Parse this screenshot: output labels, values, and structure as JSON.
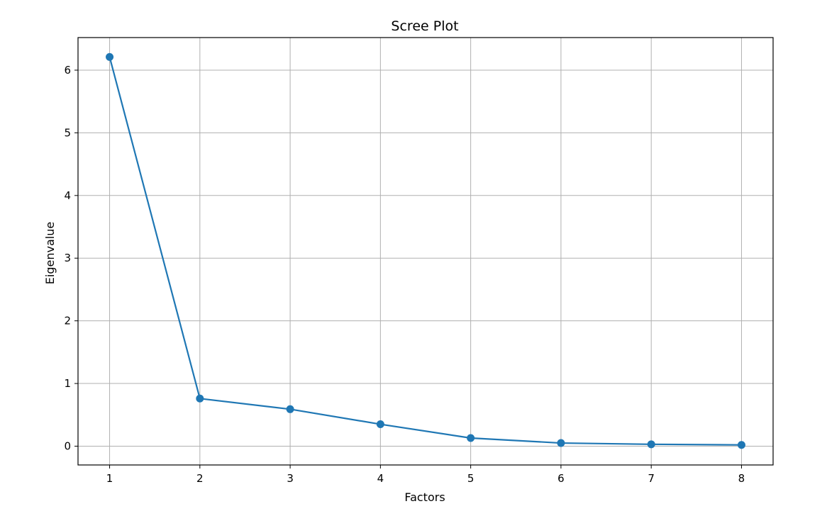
{
  "chart_data": {
    "type": "line",
    "title": "Scree Plot",
    "xlabel": "Factors",
    "ylabel": "Eigenvalue",
    "x": [
      1,
      2,
      3,
      4,
      5,
      6,
      7,
      8
    ],
    "series": [
      {
        "values": [
          6.21,
          0.76,
          0.59,
          0.35,
          0.13,
          0.05,
          0.03,
          0.02
        ],
        "color": "#1f77b4",
        "marker": "circle"
      }
    ],
    "xticks": [
      1,
      2,
      3,
      4,
      5,
      6,
      7,
      8
    ],
    "yticks": [
      0,
      1,
      2,
      3,
      4,
      5,
      6
    ],
    "xlim": [
      0.65,
      8.35
    ],
    "ylim": [
      -0.3,
      6.52
    ],
    "grid": true,
    "legend": "none"
  }
}
